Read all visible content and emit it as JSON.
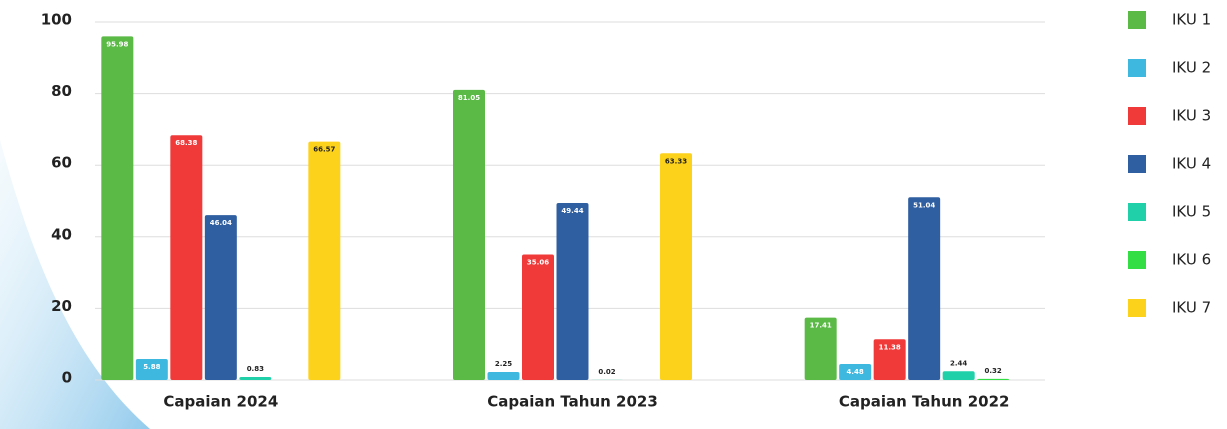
{
  "chart_data": {
    "type": "bar",
    "categories": [
      "Capaian 2024",
      "Capaian Tahun 2023",
      "Capaian Tahun 2022"
    ],
    "series": [
      {
        "name": "IKU 1",
        "color": "#5bb946",
        "values": [
          95.98,
          81.05,
          17.41
        ]
      },
      {
        "name": "IKU 2",
        "color": "#3fb8e0",
        "values": [
          5.88,
          2.25,
          4.48
        ]
      },
      {
        "name": "IKU 3",
        "color": "#f03a3a",
        "values": [
          68.38,
          35.06,
          11.38
        ]
      },
      {
        "name": "IKU 4",
        "color": "#2f5fa0",
        "values": [
          46.04,
          49.44,
          51.04
        ]
      },
      {
        "name": "IKU 5",
        "color": "#1fd0a8",
        "values": [
          0.83,
          0.02,
          2.44
        ]
      },
      {
        "name": "IKU 6",
        "color": "#33dd44",
        "values": [
          null,
          null,
          0.32
        ]
      },
      {
        "name": "IKU 7",
        "color": "#fdd21b",
        "values": [
          66.57,
          63.33,
          null
        ]
      }
    ],
    "ylim": [
      0,
      100
    ],
    "yticks": [
      0,
      20,
      40,
      60,
      80,
      100
    ],
    "grid": true,
    "legend": "right"
  }
}
